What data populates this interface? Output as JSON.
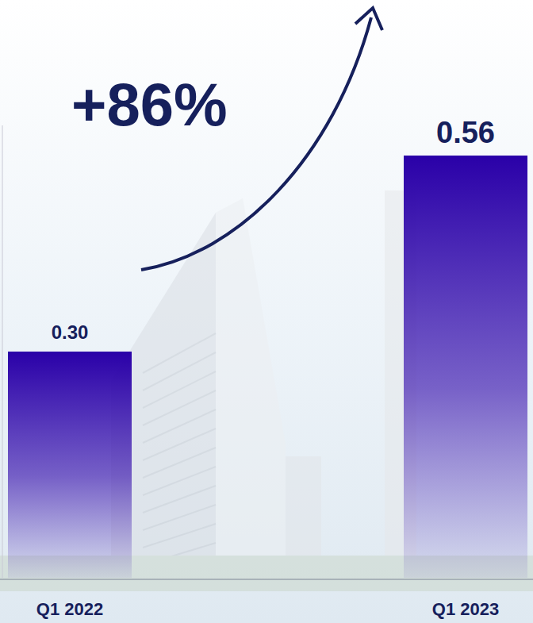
{
  "chart_data": {
    "type": "bar",
    "categories": [
      "Q1 2022",
      "Q1 2023"
    ],
    "values": [
      0.3,
      0.56
    ],
    "value_labels": [
      "0.30",
      "0.56"
    ],
    "color": "#2a00a8",
    "ylim": [
      0,
      0.6
    ],
    "data_labels": true,
    "tick_labels": "x",
    "annotations": [
      "+86%"
    ]
  }
}
